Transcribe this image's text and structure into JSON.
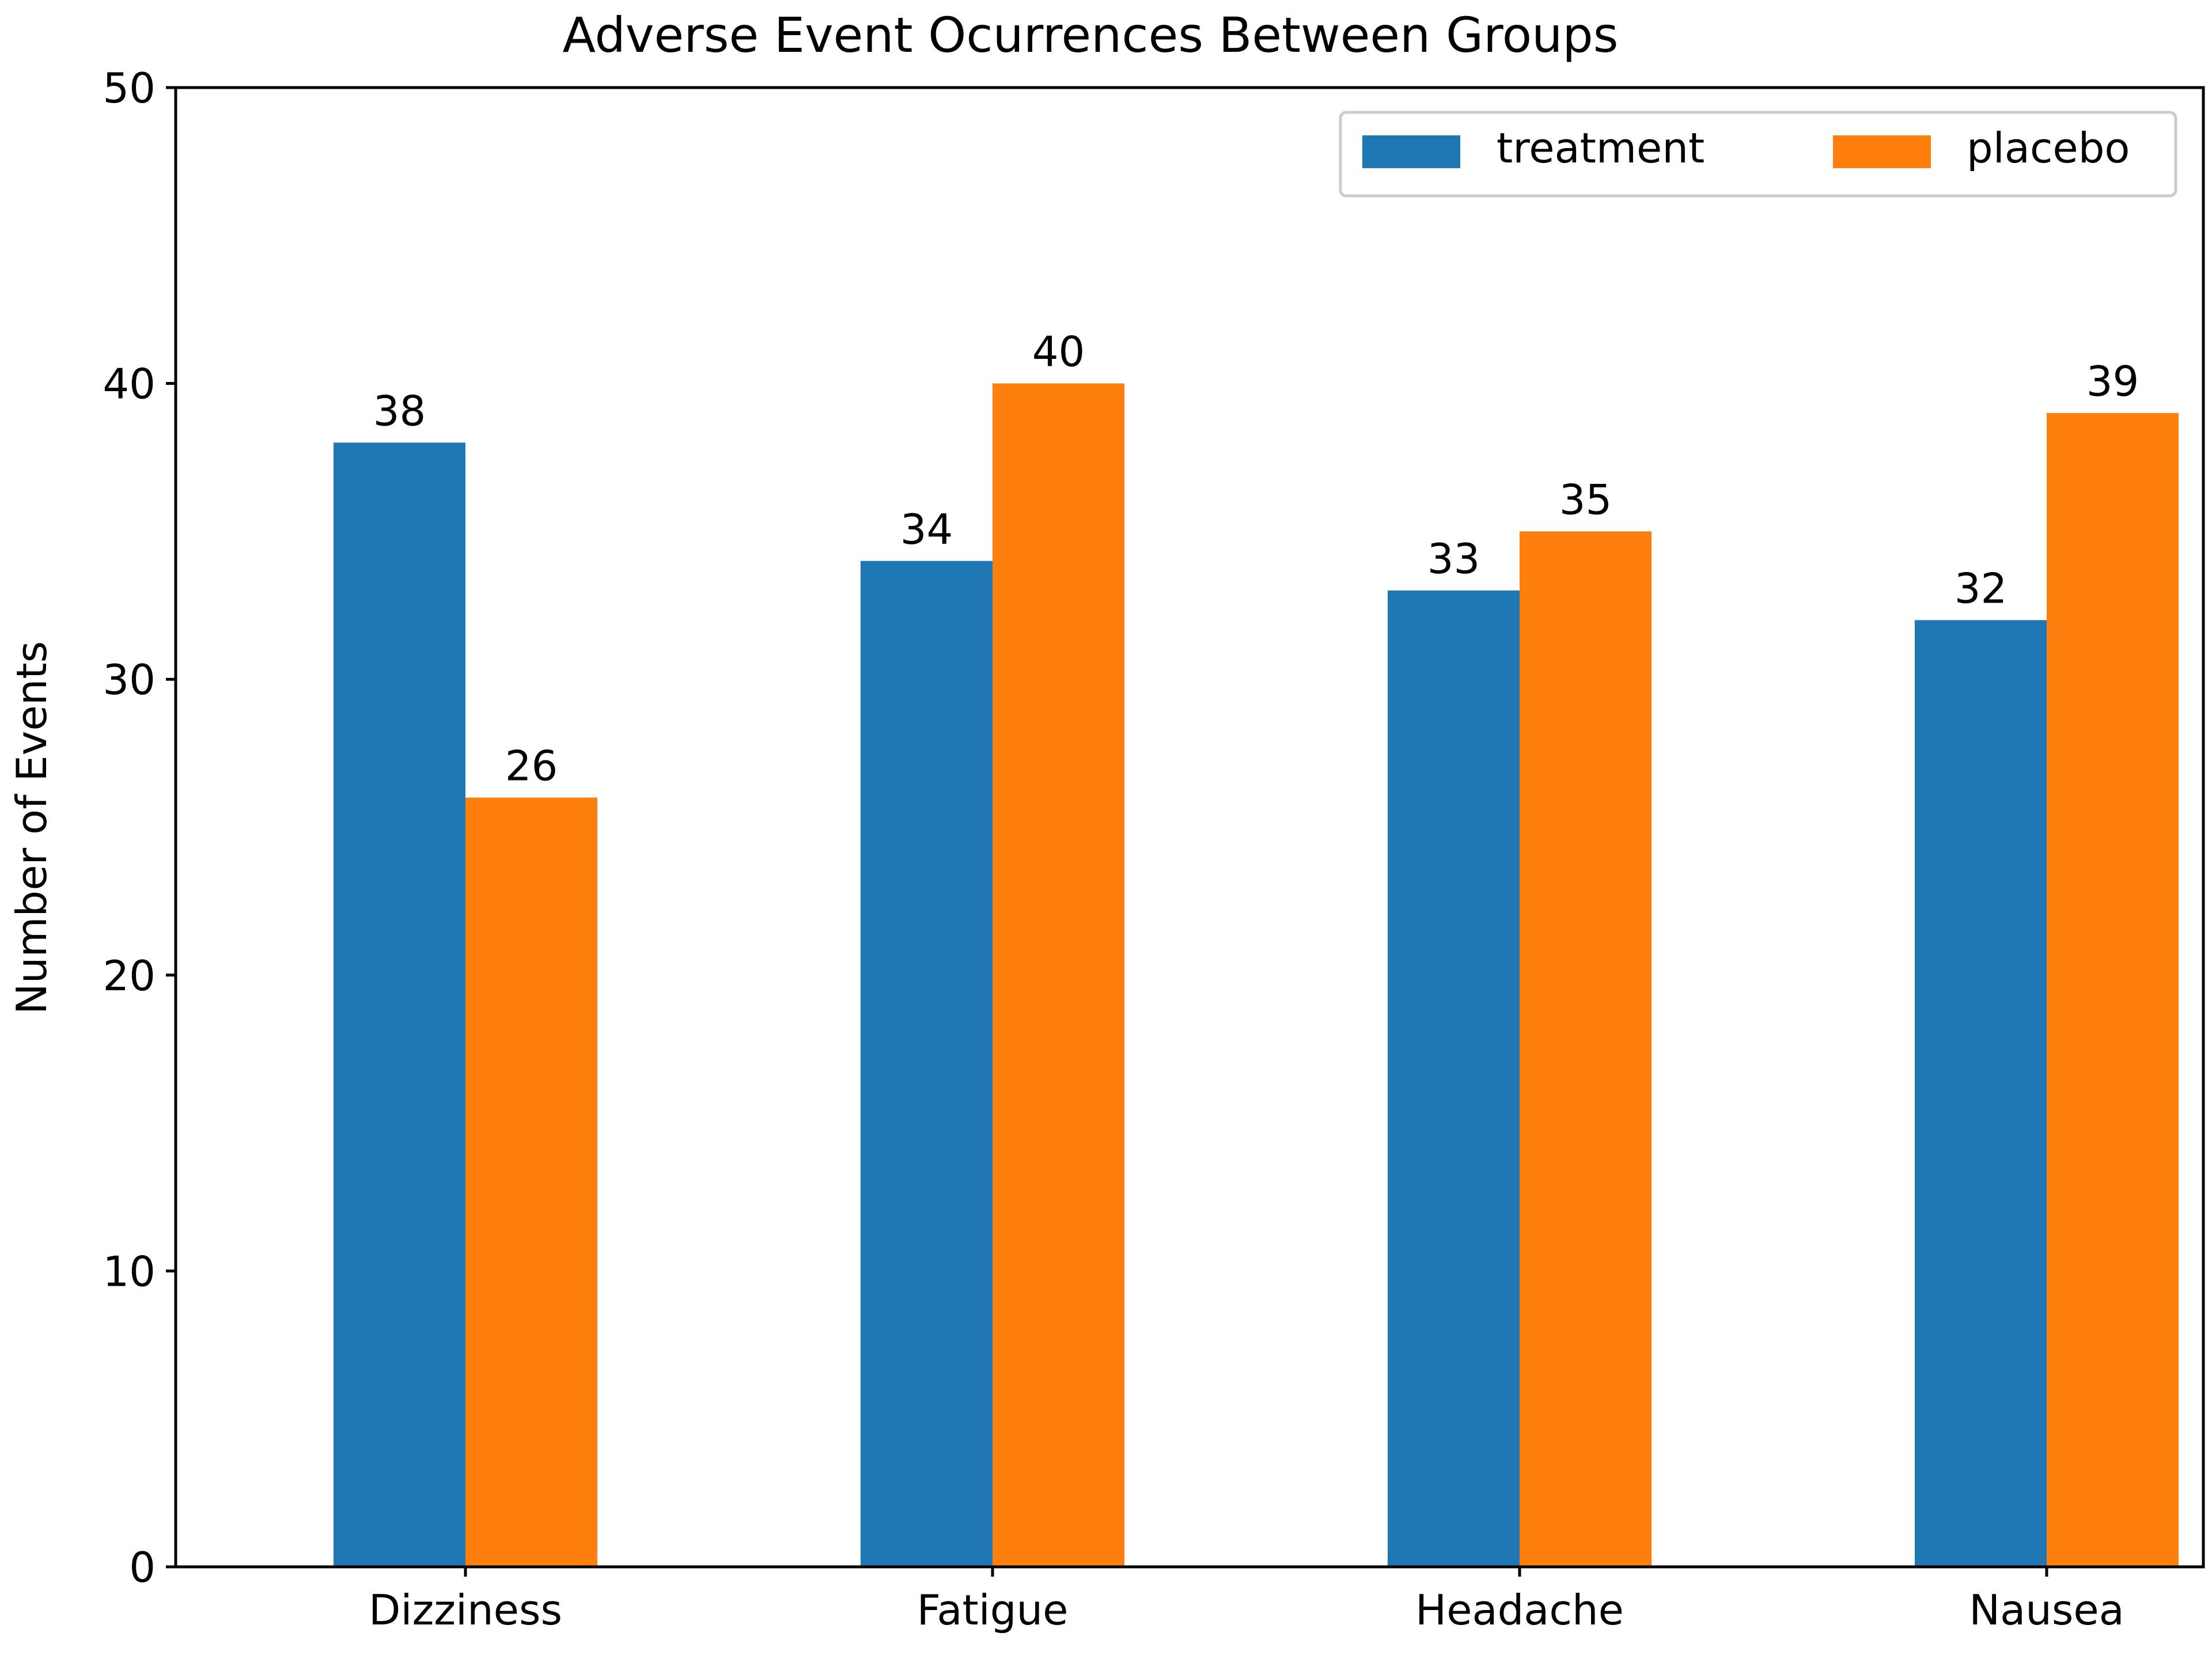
{
  "chart_data": {
    "type": "bar",
    "title": "Adverse Event Ocurrences Between Groups",
    "xlabel": "",
    "ylabel": "Number of Events",
    "categories": [
      "Dizziness",
      "Fatigue",
      "Headache",
      "Nausea"
    ],
    "series": [
      {
        "name": "treatment",
        "values": [
          38,
          34,
          33,
          32
        ],
        "color": "#1f77b4"
      },
      {
        "name": "placebo",
        "values": [
          26,
          40,
          35,
          39
        ],
        "color": "#ff7f0e"
      }
    ],
    "ylim": [
      0,
      50
    ],
    "yticks": [
      0,
      10,
      20,
      30,
      40,
      50
    ],
    "data_labels": true,
    "grid": false,
    "legend_position": "top-right"
  }
}
